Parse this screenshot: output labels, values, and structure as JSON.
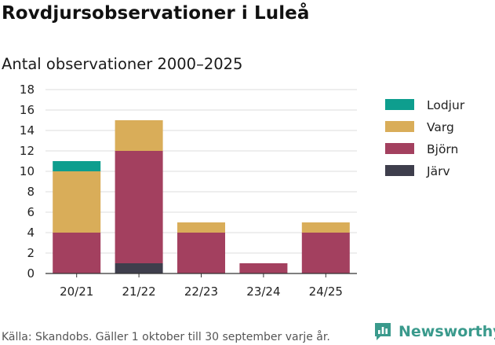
{
  "header": {
    "title": "Rovdjursobservationer i Luleå",
    "subtitle": "Antal observationer 2000–2025"
  },
  "footer": {
    "source": "Källa: Skandobs. Gäller 1 oktober till 30 september varje år.",
    "brand_name": "Newsworthy"
  },
  "chart_data": {
    "type": "bar",
    "stacked": true,
    "title": "Antal observationer 2000–2025",
    "categories": [
      "20/21",
      "21/22",
      "22/23",
      "23/24",
      "24/25"
    ],
    "series": [
      {
        "name": "Järv",
        "color": "#3e3e4c",
        "values": [
          0,
          1,
          0,
          0,
          0
        ]
      },
      {
        "name": "Björn",
        "color": "#a3405f",
        "values": [
          4,
          11,
          4,
          1,
          4
        ]
      },
      {
        "name": "Varg",
        "color": "#d9ad59",
        "values": [
          6,
          3,
          1,
          0,
          1
        ]
      },
      {
        "name": "Lodjur",
        "color": "#0e9e8e",
        "values": [
          1,
          0,
          0,
          0,
          0
        ]
      }
    ],
    "legend_order": [
      "Lodjur",
      "Varg",
      "Björn",
      "Järv"
    ],
    "ylim": [
      0,
      18
    ],
    "yticks": [
      0,
      2,
      4,
      6,
      8,
      10,
      12,
      14,
      16,
      18
    ],
    "xlabel": "",
    "ylabel": "",
    "grid": true,
    "legend_position": "right"
  }
}
